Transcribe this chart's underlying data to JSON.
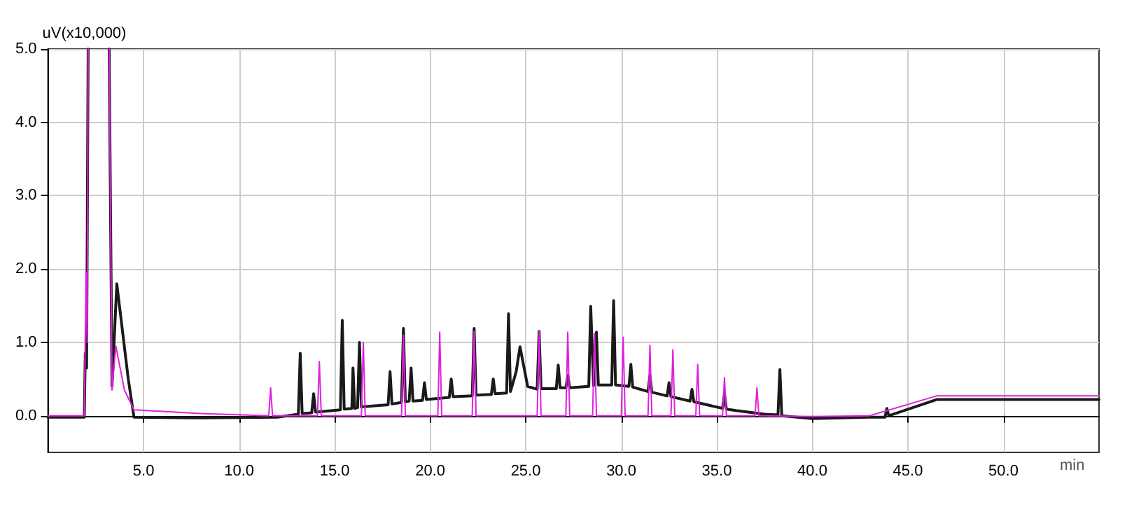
{
  "chart_data": {
    "type": "line",
    "xlabel": "min",
    "ylabel": "uV(x10,000)",
    "xlim": [
      0,
      55
    ],
    "ylim": [
      -0.5,
      5.0
    ],
    "xticks": [
      {
        "value": 5,
        "label": "5.0"
      },
      {
        "value": 10,
        "label": "10.0"
      },
      {
        "value": 15,
        "label": "15.0"
      },
      {
        "value": 20,
        "label": "20.0"
      },
      {
        "value": 25,
        "label": "25.0"
      },
      {
        "value": 30,
        "label": "30.0"
      },
      {
        "value": 35,
        "label": "35.0"
      },
      {
        "value": 40,
        "label": "40.0"
      },
      {
        "value": 45,
        "label": "45.0"
      },
      {
        "value": 50,
        "label": "50.0"
      }
    ],
    "yticks": [
      {
        "value": 0,
        "label": "0.0"
      },
      {
        "value": 1,
        "label": "1.0"
      },
      {
        "value": 2,
        "label": "2.0"
      },
      {
        "value": 3,
        "label": "3.0"
      },
      {
        "value": 4,
        "label": "4.0"
      },
      {
        "value": 5,
        "label": "5.0"
      }
    ],
    "grid": true,
    "marker": "none",
    "line_style": "solid",
    "series": [
      {
        "color": "#1a1a1a",
        "x": [
          0,
          1.9,
          1.95,
          2.02,
          2.1,
          2.15,
          3.2,
          3.35,
          3.6,
          4.2,
          4.5,
          8,
          12,
          13.1,
          13.2,
          13.3,
          13.8,
          13.9,
          14.0,
          15.3,
          15.4,
          15.5,
          15.9,
          15.96,
          16.05,
          16.2,
          16.3,
          16.4,
          17.8,
          17.9,
          18.0,
          18.5,
          18.6,
          18.7,
          18.9,
          19.0,
          19.1,
          19.6,
          19.7,
          19.8,
          21.0,
          21.1,
          21.2,
          22.2,
          22.3,
          22.4,
          23.2,
          23.3,
          23.4,
          24.0,
          24.1,
          24.2,
          24.5,
          24.7,
          25.1,
          25.6,
          25.7,
          25.8,
          26.6,
          26.7,
          26.8,
          27.1,
          27.2,
          27.3,
          28.3,
          28.4,
          28.55,
          28.7,
          28.8,
          29.5,
          29.6,
          29.7,
          30.4,
          30.5,
          30.6,
          31.4,
          31.5,
          31.6,
          32.4,
          32.5,
          32.6,
          33.6,
          33.7,
          33.8,
          35.3,
          35.4,
          35.5,
          36,
          37.5,
          38.2,
          38.3,
          38.4,
          40,
          43,
          43.8,
          43.9,
          44.0,
          46.5,
          55
        ],
        "values": [
          -0.02,
          -0.02,
          0.85,
          0.65,
          5.0,
          null,
          5.0,
          0.4,
          1.8,
          0.5,
          -0.02,
          -0.03,
          -0.02,
          0.02,
          0.85,
          0.03,
          0.04,
          0.3,
          0.05,
          0.08,
          1.3,
          0.09,
          0.1,
          0.65,
          0.1,
          0.11,
          1.0,
          0.12,
          0.15,
          0.6,
          0.16,
          0.18,
          1.19,
          0.19,
          0.2,
          0.65,
          0.2,
          0.21,
          0.45,
          0.22,
          0.25,
          0.5,
          0.26,
          0.27,
          1.19,
          0.28,
          0.29,
          0.5,
          0.3,
          0.31,
          1.39,
          0.33,
          0.6,
          0.94,
          0.4,
          0.36,
          1.15,
          0.37,
          0.37,
          0.69,
          0.38,
          0.38,
          0.55,
          0.38,
          0.4,
          1.49,
          0.41,
          1.14,
          0.42,
          0.42,
          1.57,
          0.42,
          0.4,
          0.7,
          0.39,
          0.33,
          0.55,
          0.32,
          0.27,
          0.45,
          0.26,
          0.2,
          0.36,
          0.19,
          0.1,
          0.3,
          0.09,
          0.07,
          0.02,
          0.01,
          0.63,
          0.0,
          -0.04,
          -0.02,
          -0.02,
          0.1,
          0.0,
          0.22,
          0.22
        ]
      },
      {
        "color": "#e020e0",
        "x": [
          0,
          1.9,
          1.99,
          2.05,
          2.1,
          2.15,
          3.2,
          3.35,
          3.55,
          4.0,
          4.5,
          8,
          11.55,
          11.65,
          11.75,
          14.1,
          14.2,
          14.3,
          16.4,
          16.5,
          16.6,
          18.5,
          18.6,
          18.7,
          20.4,
          20.5,
          20.6,
          22.2,
          22.3,
          22.4,
          25.6,
          25.7,
          25.8,
          27.1,
          27.2,
          27.3,
          28.5,
          28.6,
          28.7,
          30.0,
          30.1,
          30.2,
          31.4,
          31.5,
          31.6,
          32.6,
          32.7,
          32.8,
          33.9,
          34.0,
          34.1,
          35.3,
          35.4,
          35.5,
          37.0,
          37.1,
          37.2,
          40,
          43,
          46.5,
          55
        ],
        "values": [
          0.0,
          0.0,
          1.95,
          1.0,
          5.0,
          null,
          5.0,
          0.35,
          0.95,
          0.35,
          0.08,
          0.03,
          0.0,
          0.38,
          0.0,
          0.0,
          0.74,
          0.0,
          0.0,
          1.0,
          0.0,
          0.0,
          1.1,
          0.0,
          0.0,
          1.14,
          0.0,
          0.0,
          1.15,
          0.0,
          0.0,
          1.15,
          0.0,
          0.0,
          1.14,
          0.0,
          0.0,
          1.12,
          0.0,
          0.0,
          1.07,
          0.0,
          0.0,
          0.96,
          0.0,
          0.0,
          0.9,
          0.0,
          0.0,
          0.7,
          0.0,
          0.0,
          0.52,
          0.0,
          0.0,
          0.38,
          0.0,
          -0.01,
          0.0,
          0.27,
          0.27
        ]
      }
    ]
  }
}
